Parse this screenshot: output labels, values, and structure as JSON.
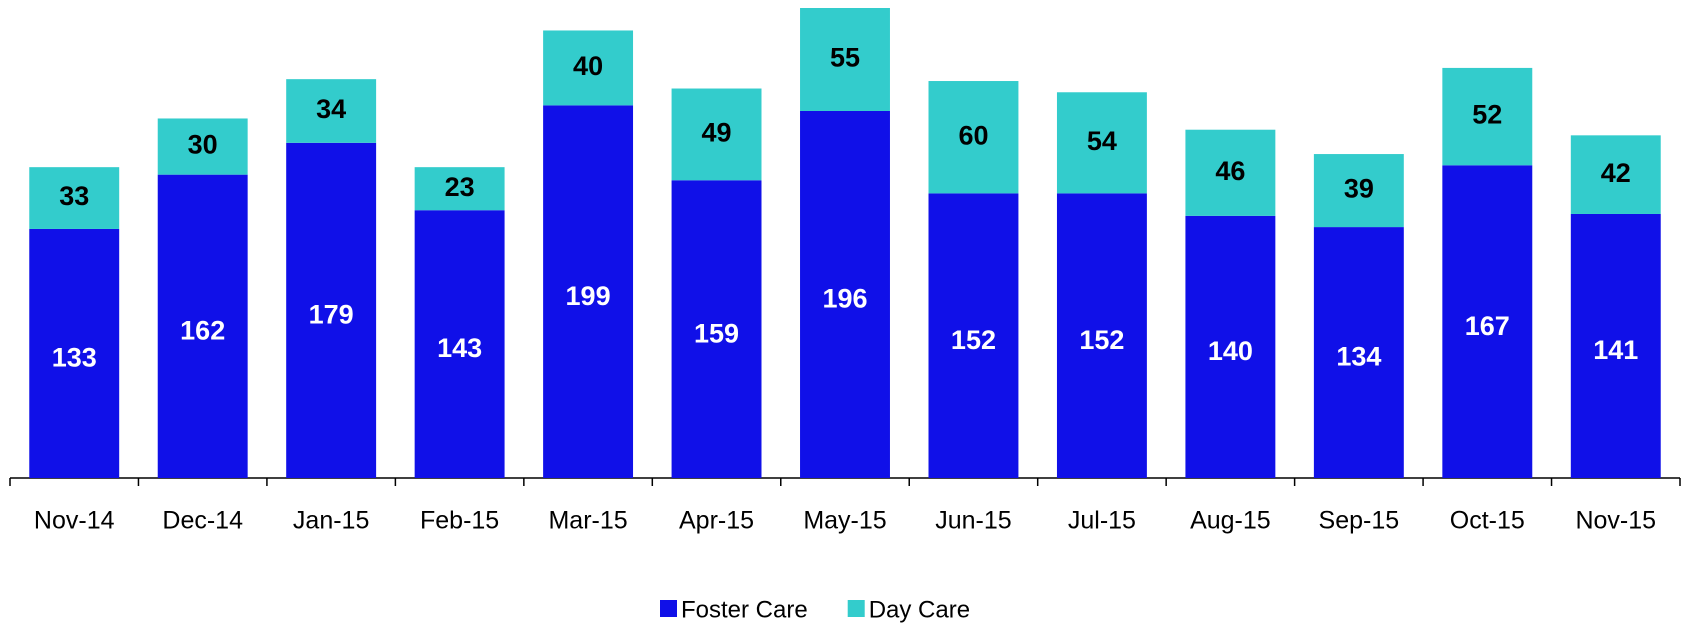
{
  "chart_data": {
    "type": "bar",
    "stacked": true,
    "categories": [
      "Nov-14",
      "Dec-14",
      "Jan-15",
      "Feb-15",
      "Mar-15",
      "Apr-15",
      "May-15",
      "Jun-15",
      "Jul-15",
      "Aug-15",
      "Sep-15",
      "Oct-15",
      "Nov-15"
    ],
    "series": [
      {
        "name": "Foster Care",
        "color": "#1010e8",
        "label_color": "#ffffff",
        "values": [
          133,
          162,
          179,
          143,
          199,
          159,
          196,
          152,
          152,
          140,
          134,
          167,
          141
        ]
      },
      {
        "name": "Day Care",
        "color": "#33cccc",
        "label_color": "#000000",
        "values": [
          33,
          30,
          34,
          23,
          40,
          49,
          55,
          60,
          54,
          46,
          39,
          52,
          42
        ]
      }
    ],
    "legend": "bottom"
  }
}
